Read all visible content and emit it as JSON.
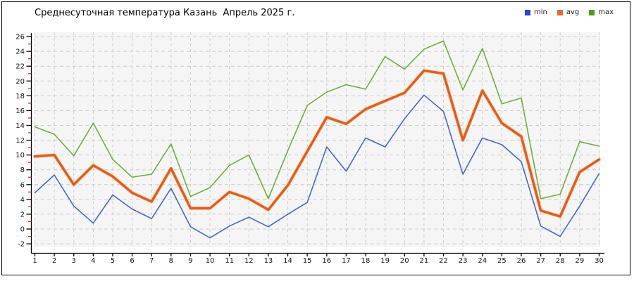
{
  "title": "Среднесуточная температура Казань  Апрель 2025 г.",
  "legend": [
    {
      "label": "min",
      "color": "#2545d2"
    },
    {
      "label": "avg",
      "color": "#e86c28"
    },
    {
      "label": "max",
      "color": "#46a41c"
    }
  ],
  "chart_data": {
    "type": "line",
    "title": "Среднесуточная температура Казань  Апрель 2025 г.",
    "xlabel": "",
    "ylabel": "",
    "x": [
      1,
      2,
      3,
      4,
      5,
      6,
      7,
      8,
      9,
      10,
      11,
      12,
      13,
      14,
      15,
      16,
      17,
      18,
      19,
      20,
      21,
      22,
      23,
      24,
      25,
      26,
      27,
      28,
      29,
      30
    ],
    "series": [
      {
        "name": "min",
        "color": "#4667d6",
        "values": [
          4.9,
          7.3,
          3.1,
          0.8,
          4.6,
          2.7,
          1.4,
          5.5,
          0.3,
          -1.2,
          0.4,
          1.6,
          0.3,
          2.0,
          3.6,
          11.1,
          7.8,
          12.3,
          11.1,
          14.9,
          18.1,
          15.9,
          7.4,
          12.3,
          11.4,
          9.1,
          0.4,
          -1.0,
          3.1,
          7.5
        ]
      },
      {
        "name": "avg",
        "color": "#e05d1d",
        "values": [
          9.8,
          10.0,
          6.0,
          8.6,
          7.1,
          4.9,
          3.7,
          8.2,
          2.8,
          2.8,
          5.0,
          4.1,
          2.6,
          5.9,
          10.5,
          15.1,
          14.2,
          16.2,
          17.3,
          18.4,
          21.4,
          21.0,
          12.0,
          18.7,
          14.3,
          12.5,
          2.5,
          1.7,
          7.7,
          9.4
        ]
      },
      {
        "name": "max",
        "color": "#6fae3d",
        "values": [
          13.8,
          12.8,
          9.9,
          14.3,
          9.4,
          7.0,
          7.4,
          11.5,
          4.4,
          5.6,
          8.6,
          10.0,
          4.1,
          10.6,
          16.7,
          18.5,
          19.5,
          18.9,
          23.3,
          21.6,
          24.3,
          25.4,
          18.8,
          24.4,
          16.9,
          17.7,
          4.1,
          4.7,
          11.8,
          11.2
        ]
      }
    ],
    "ylim": [
      -2,
      26
    ],
    "y_ticks": [
      26,
      24,
      22,
      20,
      18,
      16,
      14,
      12,
      10,
      8,
      6,
      4,
      2,
      0,
      -2
    ],
    "y_tick_step": 2,
    "y_minor_tick_step": 1,
    "x_ticks": [
      1,
      2,
      3,
      4,
      5,
      6,
      7,
      8,
      9,
      10,
      11,
      12,
      13,
      14,
      15,
      16,
      17,
      18,
      19,
      20,
      21,
      22,
      23,
      24,
      25,
      26,
      27,
      28,
      29,
      30
    ],
    "grid": "dashed",
    "legend_position": "top-right",
    "plot_background": "#f5f5f5",
    "gridline_color": "#cccccc",
    "axis_color": "#000000",
    "minor_tick_color": "#c9291c"
  }
}
